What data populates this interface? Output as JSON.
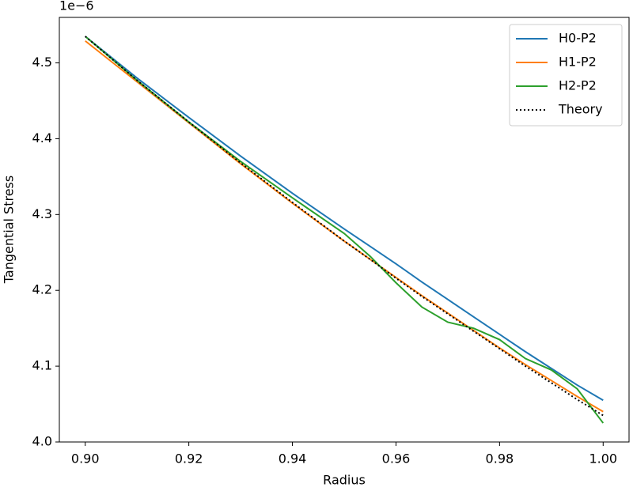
{
  "chart_data": {
    "type": "line",
    "xlabel": "Radius",
    "ylabel": "Tangential Stress",
    "offset_text": "1e−6",
    "x": [
      0.9,
      0.91,
      0.92,
      0.93,
      0.94,
      0.95,
      0.955,
      0.96,
      0.965,
      0.97,
      0.975,
      0.98,
      0.985,
      0.99,
      0.995,
      1.0
    ],
    "series": [
      {
        "name": "H0-P2",
        "color": "#1f77b4",
        "style": "solid",
        "values": [
          4.535,
          4.48,
          4.428,
          4.377,
          4.328,
          4.281,
          4.258,
          4.235,
          4.211,
          4.188,
          4.165,
          4.142,
          4.119,
          4.097,
          4.075,
          4.055
        ]
      },
      {
        "name": "H1-P2",
        "color": "#ff7f0e",
        "style": "solid",
        "values": [
          4.529,
          4.475,
          4.421,
          4.367,
          4.315,
          4.265,
          4.241,
          4.217,
          4.193,
          4.17,
          4.147,
          4.124,
          4.102,
          4.081,
          4.06,
          4.04
        ]
      },
      {
        "name": "H2-P2",
        "color": "#2ca02c",
        "style": "solid",
        "values": [
          4.535,
          4.477,
          4.422,
          4.37,
          4.322,
          4.275,
          4.245,
          4.21,
          4.178,
          4.158,
          4.15,
          4.135,
          4.11,
          4.095,
          4.07,
          4.025
        ]
      },
      {
        "name": "Theory",
        "color": "#000000",
        "style": "dotted",
        "values": [
          4.535,
          4.477,
          4.422,
          4.368,
          4.316,
          4.265,
          4.241,
          4.216,
          4.192,
          4.169,
          4.146,
          4.123,
          4.1,
          4.078,
          4.056,
          4.035
        ]
      }
    ],
    "xlim": [
      0.895,
      1.005
    ],
    "xticks": [
      {
        "value": 0.9,
        "label": "0.90"
      },
      0.92,
      0.94,
      0.96,
      0.98,
      {
        "value": 1.0,
        "label": "1.00"
      }
    ],
    "ylim": [
      4.0,
      4.56
    ],
    "yticks": [
      {
        "value": 4.0,
        "label": "4.0"
      },
      4.1,
      4.2,
      4.3,
      4.4,
      4.5
    ],
    "legend": "upper right"
  }
}
